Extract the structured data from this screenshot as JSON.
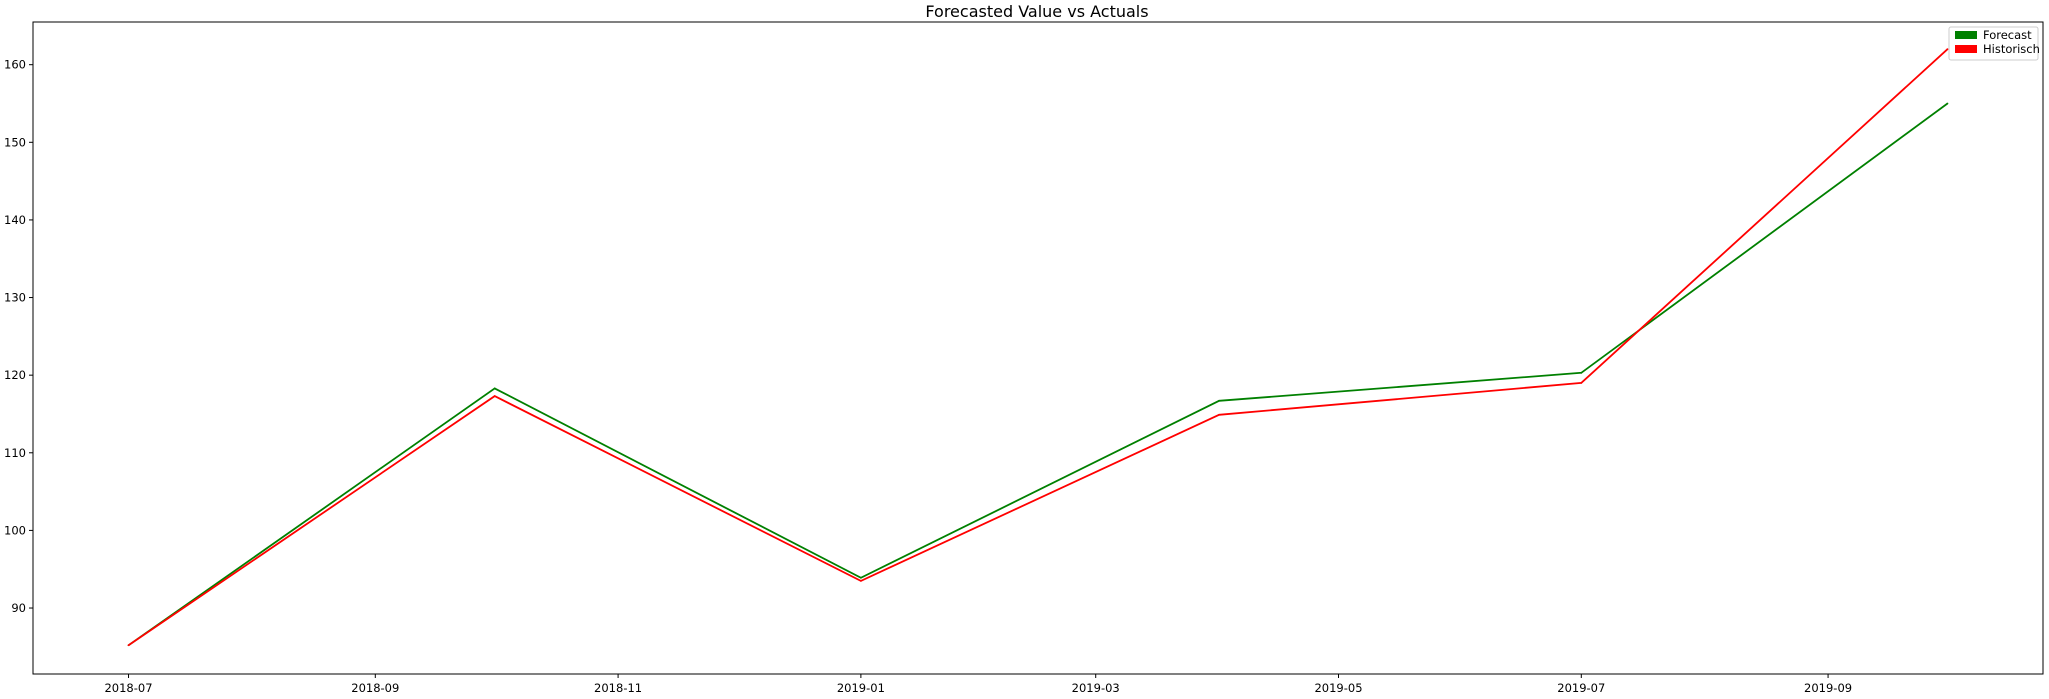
{
  "chart_data": {
    "type": "line",
    "title": "Forecasted Value vs Actuals",
    "xlabel": "",
    "ylabel": "",
    "x_ticks": [
      "2018-07",
      "2018-09",
      "2018-11",
      "2019-01",
      "2019-03",
      "2019-05",
      "2019-07",
      "2019-09"
    ],
    "y_ticks": [
      90,
      100,
      110,
      120,
      130,
      140,
      150,
      160
    ],
    "xlim": [
      "2018-06-07",
      "2019-10-25"
    ],
    "ylim": [
      81.5,
      165.5
    ],
    "grid": false,
    "legend_position": "top-right",
    "x": [
      "2018-07-01",
      "2018-10-01",
      "2019-01-01",
      "2019-04-01",
      "2019-07-01",
      "2019-10-01"
    ],
    "series": [
      {
        "name": "Forecast",
        "color": "#008000",
        "values": [
          85.2,
          118.3,
          93.9,
          116.7,
          120.3,
          155.0
        ]
      },
      {
        "name": "Historisch",
        "color": "#ff0000",
        "values": [
          85.2,
          117.3,
          93.5,
          114.9,
          119.0,
          162.0
        ]
      }
    ]
  }
}
